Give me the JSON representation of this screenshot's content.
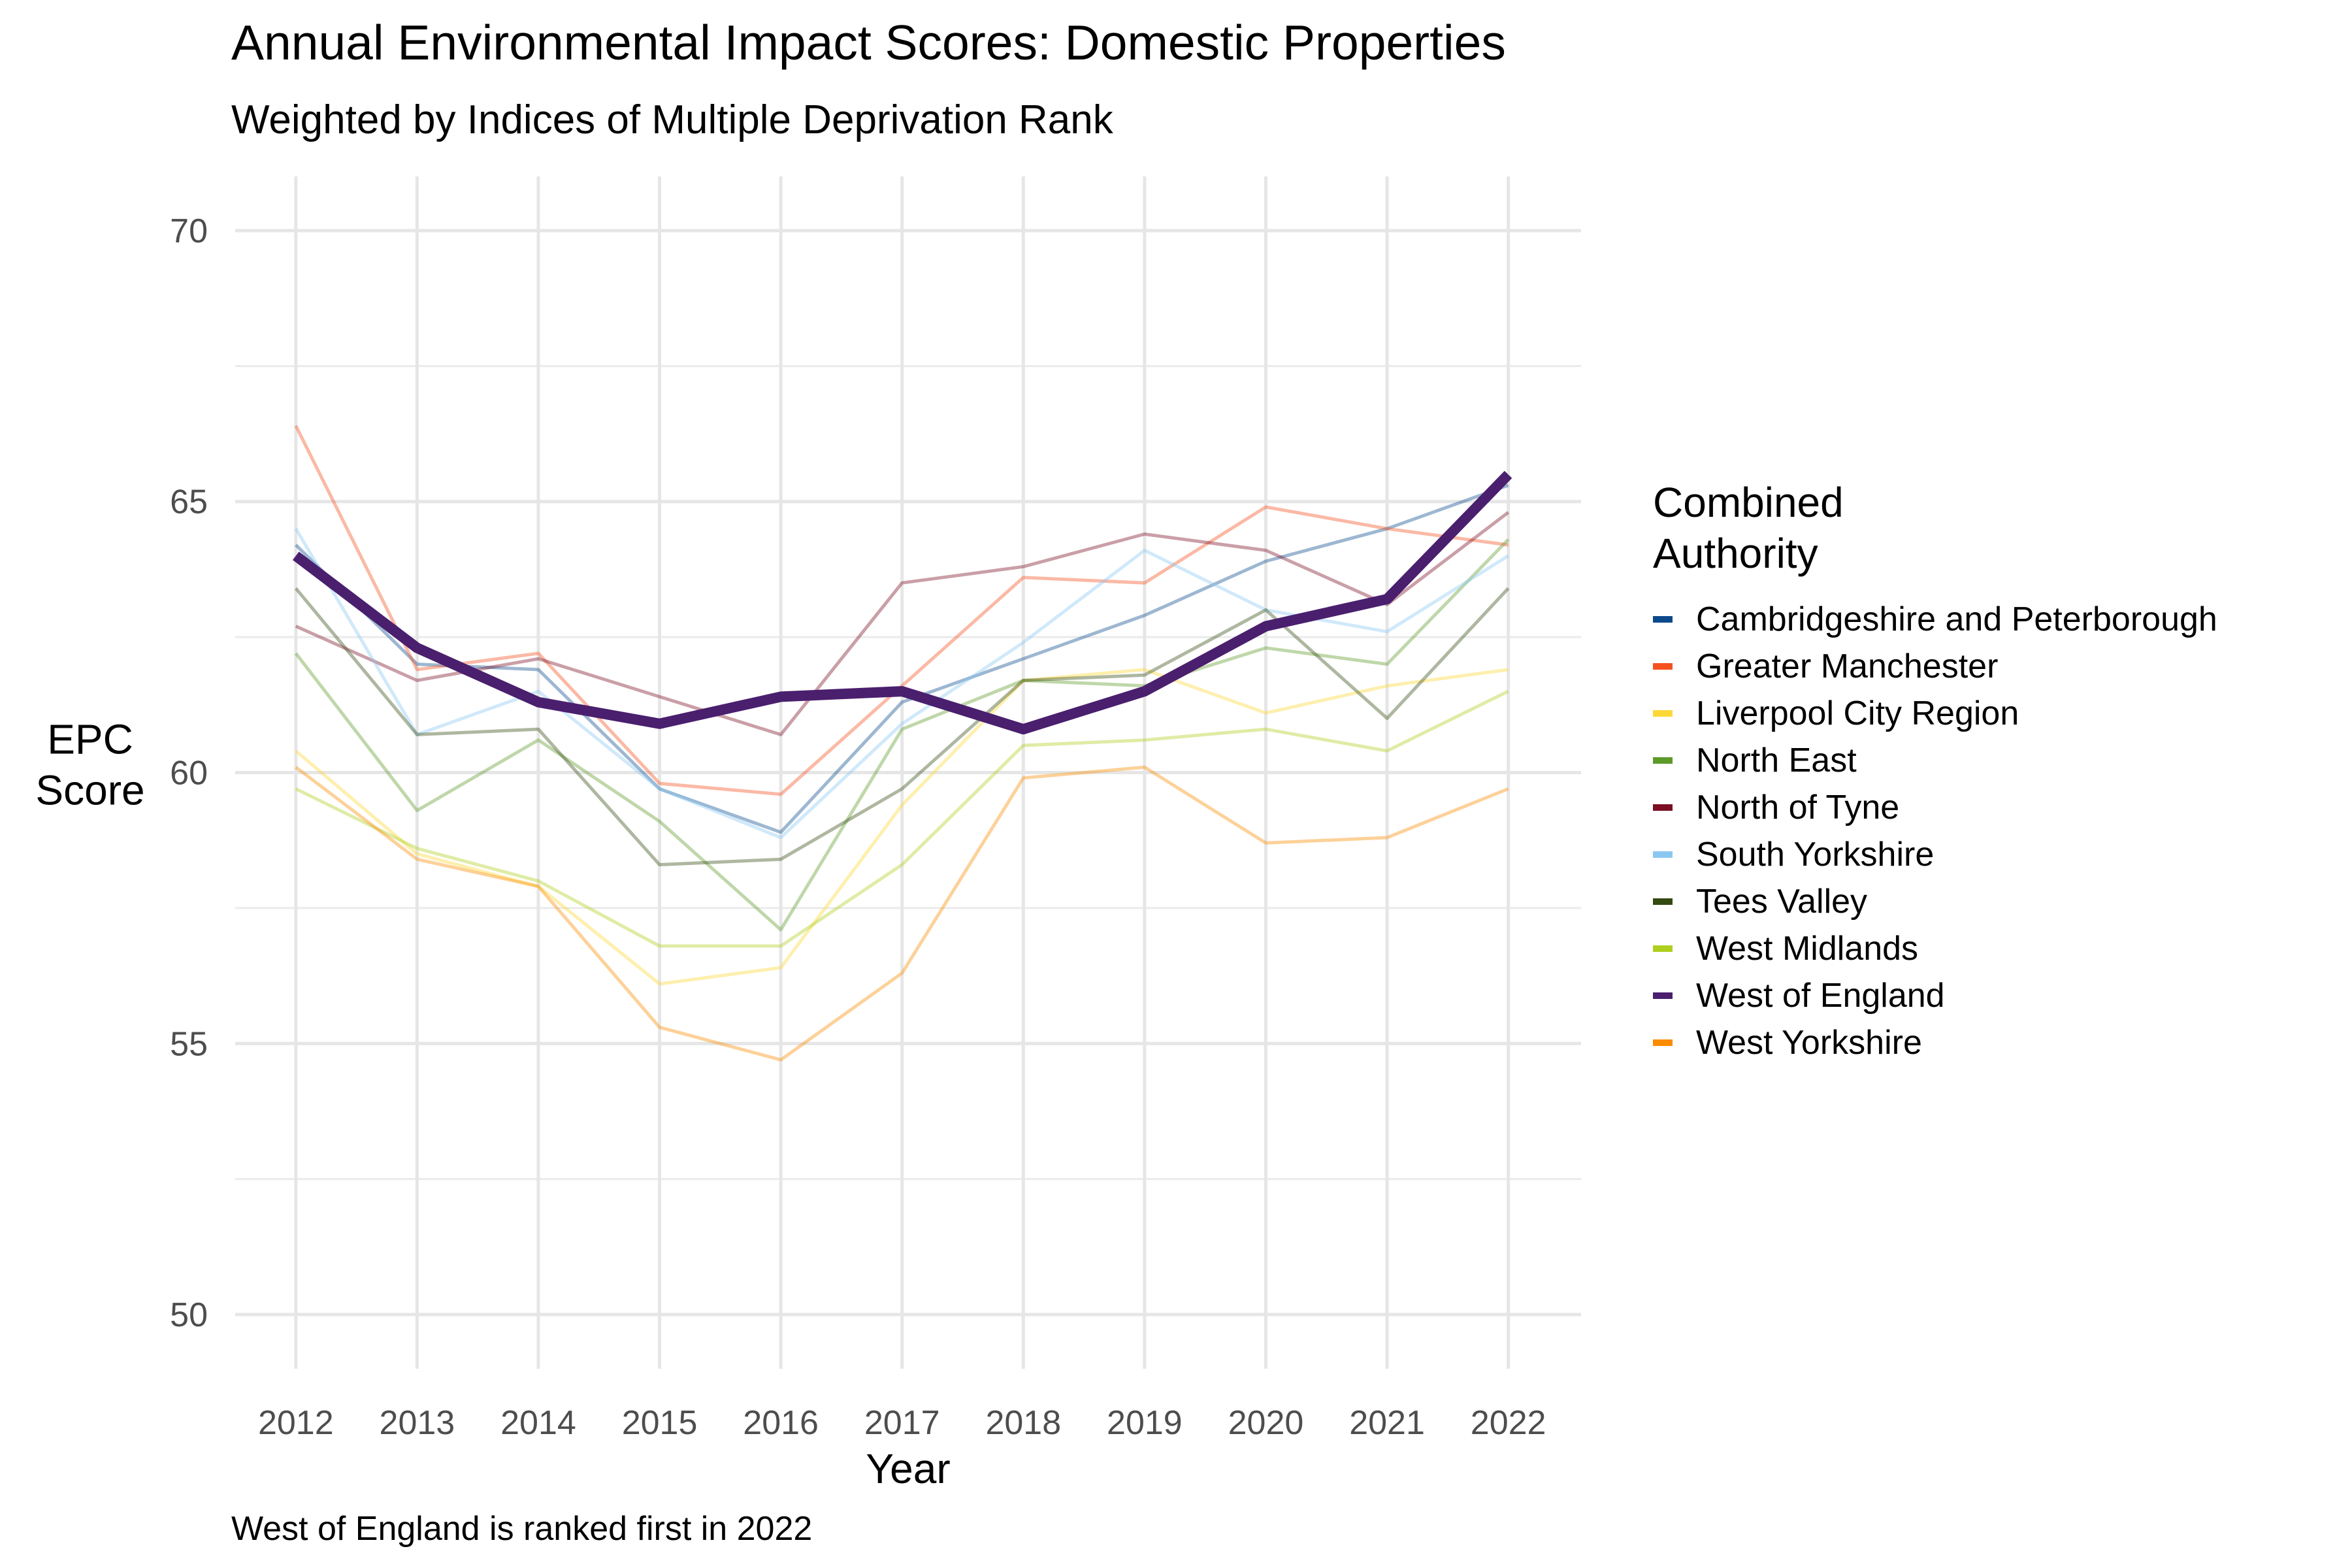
{
  "title": "Annual Environmental Impact Scores: Domestic Properties",
  "subtitle": "Weighted by Indices of Multiple Deprivation Rank",
  "caption": "West of England is ranked first in 2022",
  "legend": {
    "title": "Combined\nAuthority",
    "placement": "right"
  },
  "chart_data": {
    "type": "line",
    "xlabel": "Year",
    "ylabel": "EPC\nScore",
    "x": [
      2012,
      2013,
      2014,
      2015,
      2016,
      2017,
      2018,
      2019,
      2020,
      2021,
      2022
    ],
    "xlim": [
      2011.5,
      2022.6
    ],
    "ylim": [
      49,
      71
    ],
    "y_ticks": [
      50,
      55,
      60,
      65,
      70
    ],
    "grid": true,
    "highlight": "West of England",
    "series": [
      {
        "name": "Cambridgeshire and Peterborough",
        "color": "#0B4A8B",
        "values": [
          64.2,
          62.0,
          61.9,
          59.7,
          58.9,
          61.3,
          62.1,
          62.9,
          63.9,
          64.5,
          65.3
        ]
      },
      {
        "name": "Greater Manchester",
        "color": "#F4511E",
        "values": [
          66.4,
          61.9,
          62.2,
          59.8,
          59.6,
          61.6,
          63.6,
          63.5,
          64.9,
          64.5,
          64.2
        ]
      },
      {
        "name": "Liverpool City Region",
        "color": "#FDD835",
        "values": [
          60.4,
          58.5,
          57.9,
          56.1,
          56.4,
          59.4,
          61.7,
          61.9,
          61.1,
          61.6,
          61.9
        ]
      },
      {
        "name": "North East",
        "color": "#5E9A2A",
        "values": [
          62.2,
          59.3,
          60.6,
          59.1,
          57.1,
          60.8,
          61.7,
          61.6,
          62.3,
          62.0,
          64.3
        ]
      },
      {
        "name": "North of Tyne",
        "color": "#7B0E23",
        "values": [
          62.7,
          61.7,
          62.1,
          61.4,
          60.7,
          63.5,
          63.8,
          64.4,
          64.1,
          63.1,
          64.8
        ]
      },
      {
        "name": "South Yorkshire",
        "color": "#8AC8F2",
        "values": [
          64.5,
          60.7,
          61.5,
          59.7,
          58.8,
          60.9,
          62.4,
          64.1,
          63.0,
          62.6,
          64.0
        ]
      },
      {
        "name": "Tees Valley",
        "color": "#344A12",
        "values": [
          63.4,
          60.7,
          60.8,
          58.3,
          58.4,
          59.7,
          61.7,
          61.8,
          63.0,
          61.0,
          63.4
        ]
      },
      {
        "name": "West Midlands",
        "color": "#AECF1F",
        "values": [
          59.7,
          58.6,
          58.0,
          56.8,
          56.8,
          58.3,
          60.5,
          60.6,
          60.8,
          60.4,
          61.5
        ]
      },
      {
        "name": "West of England",
        "color": "#4A1F6E",
        "values": [
          64.0,
          62.3,
          61.3,
          60.9,
          61.4,
          61.5,
          60.8,
          61.5,
          62.7,
          63.2,
          65.5
        ]
      },
      {
        "name": "West Yorkshire",
        "color": "#FB8C00",
        "values": [
          60.1,
          58.4,
          57.9,
          55.3,
          54.7,
          56.3,
          59.9,
          60.1,
          58.7,
          58.8,
          59.7
        ]
      }
    ]
  }
}
